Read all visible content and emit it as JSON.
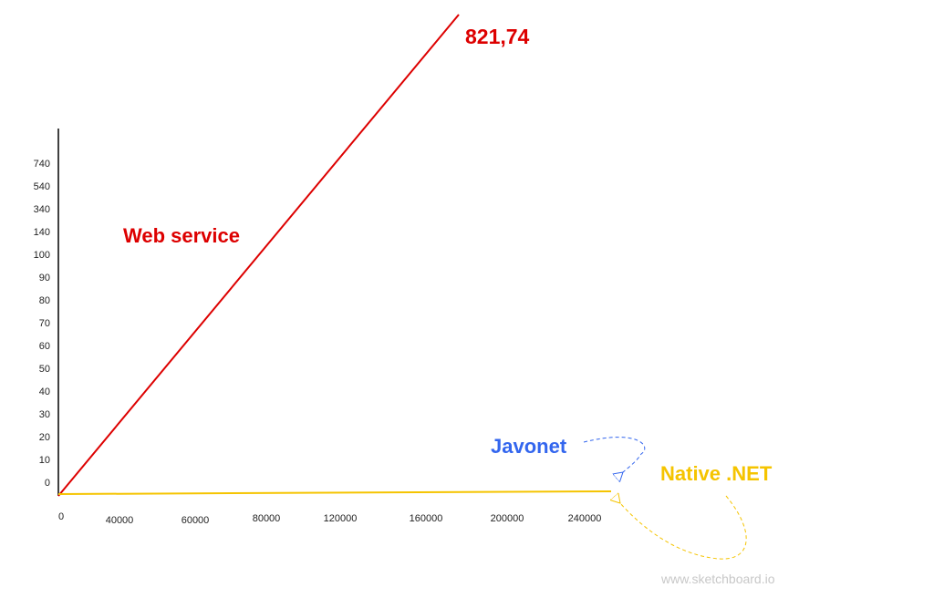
{
  "chart_data": {
    "type": "line",
    "y_tick_labels": [
      "0",
      "10",
      "20",
      "30",
      "40",
      "50",
      "60",
      "70",
      "80",
      "90",
      "100",
      "140",
      "340",
      "540",
      "740"
    ],
    "x_tick_labels": [
      "0",
      "40000",
      "60000",
      "80000",
      "120000",
      "160000",
      "200000",
      "240000"
    ],
    "series": [
      {
        "name": "Web service",
        "color": "#dd0000",
        "end_value": "821,74"
      },
      {
        "name": "Javonet",
        "color": "#3366ee"
      },
      {
        "name": "Native .NET",
        "color": "#f5c400"
      }
    ],
    "axis_color": "#000000",
    "grid": false,
    "legend": "none (series labelled inline)"
  },
  "watermark": "www.sketchboard.io"
}
